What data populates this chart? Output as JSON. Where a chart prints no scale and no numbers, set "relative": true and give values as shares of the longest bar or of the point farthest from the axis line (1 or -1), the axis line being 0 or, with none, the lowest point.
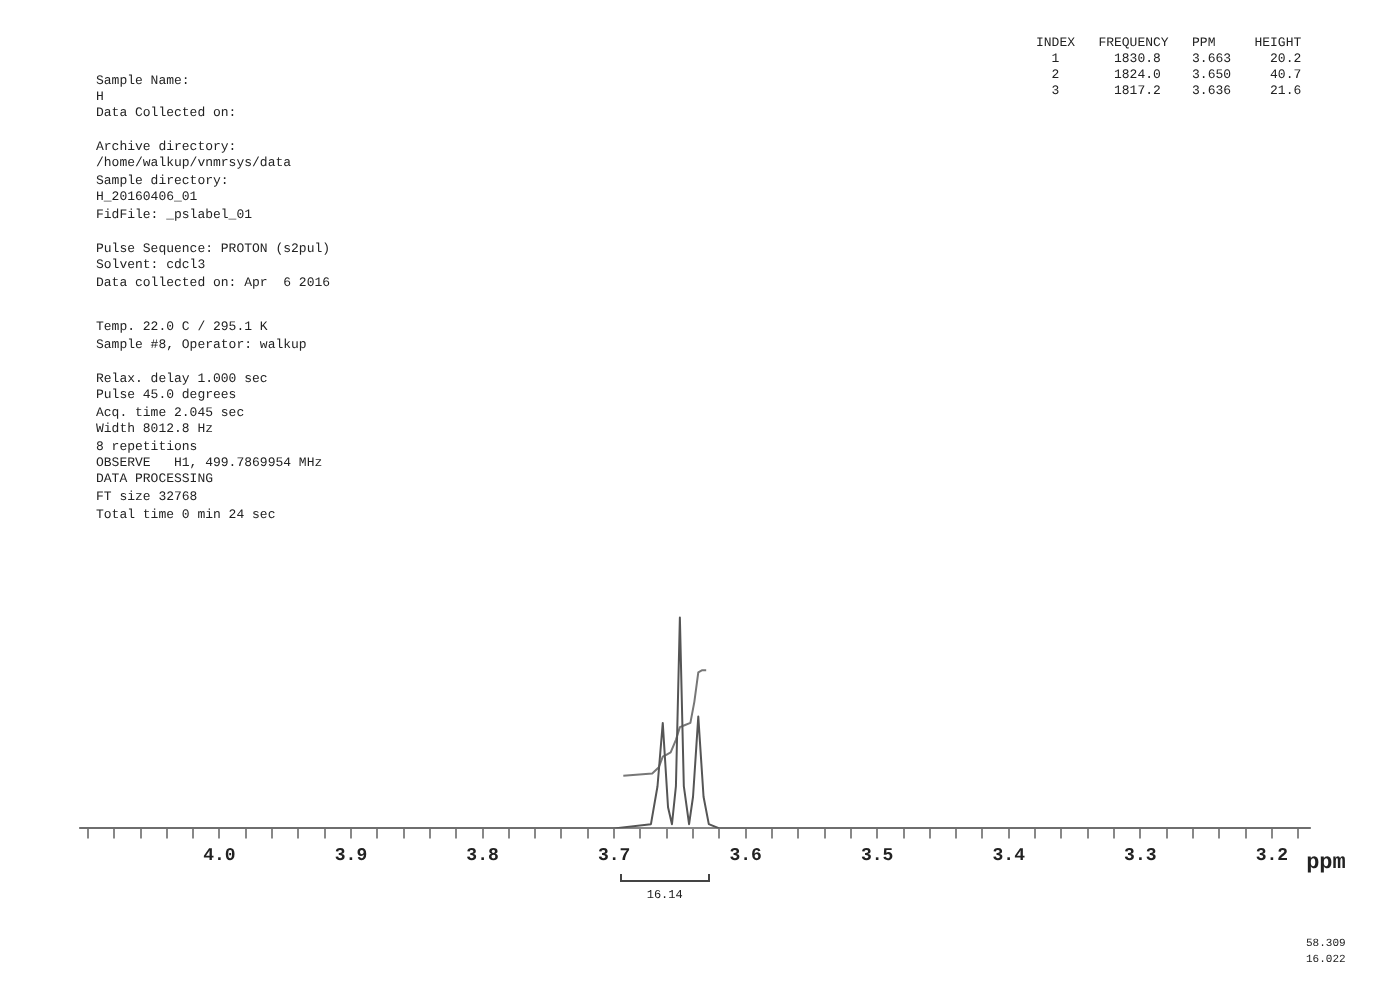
{
  "chart_data": {
    "type": "line",
    "xlabel": "ppm",
    "relative": true,
    "legend": false,
    "grid": false,
    "tick_labels": "x",
    "marker": "none",
    "xlim": [
      4.106,
      3.171
    ],
    "xticks": [
      {
        "value": 4.1,
        "label": null
      },
      {
        "value": 4.08,
        "label": null
      },
      {
        "value": 4.06,
        "label": null
      },
      {
        "value": 4.04,
        "label": null
      },
      {
        "value": 4.02,
        "label": null
      },
      {
        "value": 4.0,
        "label": "4.0"
      },
      {
        "value": 3.98,
        "label": null
      },
      {
        "value": 3.96,
        "label": null
      },
      {
        "value": 3.94,
        "label": null
      },
      {
        "value": 3.92,
        "label": null
      },
      {
        "value": 3.9,
        "label": "3.9"
      },
      {
        "value": 3.88,
        "label": null
      },
      {
        "value": 3.86,
        "label": null
      },
      {
        "value": 3.84,
        "label": null
      },
      {
        "value": 3.82,
        "label": null
      },
      {
        "value": 3.8,
        "label": "3.8"
      },
      {
        "value": 3.78,
        "label": null
      },
      {
        "value": 3.76,
        "label": null
      },
      {
        "value": 3.74,
        "label": null
      },
      {
        "value": 3.72,
        "label": null
      },
      {
        "value": 3.7,
        "label": "3.7"
      },
      {
        "value": 3.68,
        "label": null
      },
      {
        "value": 3.66,
        "label": null
      },
      {
        "value": 3.64,
        "label": null
      },
      {
        "value": 3.62,
        "label": null
      },
      {
        "value": 3.6,
        "label": "3.6"
      },
      {
        "value": 3.58,
        "label": null
      },
      {
        "value": 3.56,
        "label": null
      },
      {
        "value": 3.54,
        "label": null
      },
      {
        "value": 3.52,
        "label": null
      },
      {
        "value": 3.5,
        "label": "3.5"
      },
      {
        "value": 3.48,
        "label": null
      },
      {
        "value": 3.46,
        "label": null
      },
      {
        "value": 3.44,
        "label": null
      },
      {
        "value": 3.42,
        "label": null
      },
      {
        "value": 3.4,
        "label": "3.4"
      },
      {
        "value": 3.38,
        "label": null
      },
      {
        "value": 3.36,
        "label": null
      },
      {
        "value": 3.34,
        "label": null
      },
      {
        "value": 3.32,
        "label": null
      },
      {
        "value": 3.3,
        "label": "3.3"
      },
      {
        "value": 3.28,
        "label": null
      },
      {
        "value": 3.26,
        "label": null
      },
      {
        "value": 3.24,
        "label": null
      },
      {
        "value": 3.22,
        "label": null
      },
      {
        "value": 3.2,
        "label": "3.2"
      },
      {
        "value": 3.18,
        "label": null
      }
    ],
    "series": [
      {
        "type": "line",
        "color": "#555555",
        "x": [
          4.106,
          3.7,
          3.672,
          3.667,
          3.663,
          3.659,
          3.656,
          3.653,
          3.65,
          3.647,
          3.643,
          3.64,
          3.636,
          3.632,
          3.628,
          3.62,
          3.171
        ],
        "values": [
          0,
          0,
          0.02,
          0.2,
          0.5,
          0.1,
          0.02,
          0.2,
          1,
          0.2,
          0.02,
          0.15,
          0.53,
          0.15,
          0.02,
          0,
          0
        ]
      },
      {
        "type": "line",
        "color": "#777777",
        "x": [
          3.693,
          3.671,
          3.666,
          3.663,
          3.66,
          3.657,
          3.653,
          3.65,
          3.646,
          3.642,
          3.639,
          3.636,
          3.633,
          3.63
        ],
        "values": [
          0.25,
          0.26,
          0.29,
          0.34,
          0.35,
          0.36,
          0.42,
          0.48,
          0.49,
          0.5,
          0.6,
          0.74,
          0.75,
          0.75
        ]
      }
    ],
    "annotations": [
      "16.14",
      "Sample Name:",
      "H",
      "Data Collected on:",
      "Archive directory:",
      "/home/walkup/vnmrsys/data",
      "Sample directory:",
      "H_20160406_01",
      "FidFile: _pslabel_01",
      "Pulse Sequence: PROTON (s2pul)",
      "Solvent: cdcl3",
      "Data collected on: Apr  6 2016",
      "Temp. 22.0 C / 295.1 K",
      "Sample #8, Operator: walkup",
      "Relax. delay 1.000 sec",
      "Pulse 45.0 degrees",
      "Acq. time 2.045 sec",
      "Width 8012.8 Hz",
      "8 repetitions",
      "OBSERVE   H1, 499.7869954 MHz",
      "DATA PROCESSING",
      "FT size 32768",
      "Total time 0 min 24 sec",
      "INDEX   FREQUENCY   PPM     HEIGHT",
      "  1       1830.8    3.663     20.2",
      "  2       1824.0    3.650     40.7",
      "  3       1817.2    3.636     21.6",
      "58.309",
      "16.022"
    ]
  }
}
